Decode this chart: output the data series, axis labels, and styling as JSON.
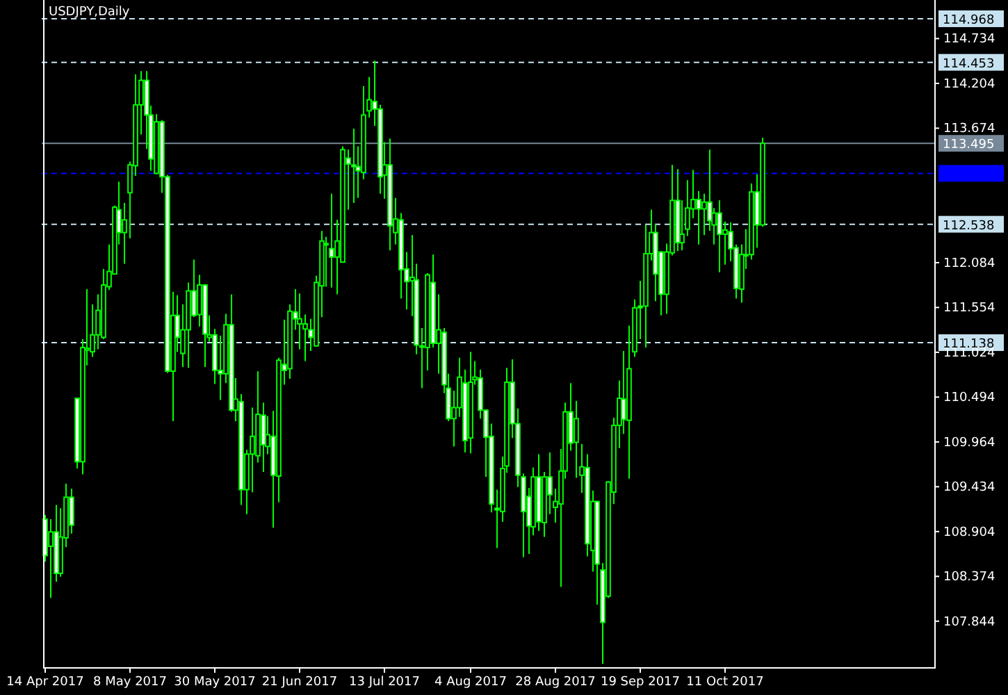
{
  "chart_data": {
    "type": "candlestick",
    "title": "USDJPY,Daily",
    "categories": [
      "14 Apr 2017",
      null,
      null,
      null,
      null,
      null,
      null,
      null,
      null,
      null,
      null,
      null,
      null,
      null,
      null,
      null,
      "8 May 2017",
      null,
      null,
      null,
      null,
      null,
      null,
      null,
      null,
      null,
      null,
      null,
      null,
      null,
      null,
      null,
      "30 May 2017",
      null,
      null,
      null,
      null,
      null,
      null,
      null,
      null,
      null,
      null,
      null,
      null,
      null,
      null,
      null,
      "21 Jun 2017",
      null,
      null,
      null,
      null,
      null,
      null,
      null,
      null,
      null,
      null,
      null,
      null,
      null,
      null,
      null,
      "13 Jul 2017",
      null,
      null,
      null,
      null,
      null,
      null,
      null,
      null,
      null,
      null,
      null,
      null,
      null,
      null,
      null,
      "4 Aug 2017",
      null,
      null,
      null,
      null,
      null,
      null,
      null,
      null,
      null,
      null,
      null,
      null,
      null,
      null,
      null,
      "28 Aug 2017",
      null,
      null,
      null,
      null,
      null,
      null,
      null,
      null,
      null,
      null,
      null,
      null,
      null,
      null,
      null,
      "19 Sep 2017",
      null,
      null,
      null,
      null,
      null,
      null,
      null,
      null,
      null,
      null,
      null,
      null,
      null,
      null,
      null,
      "11 Oct 2017",
      null,
      null,
      null,
      null,
      null,
      null,
      null,
      null,
      null,
      null,
      null,
      null,
      null,
      null,
      null,
      null,
      null,
      null,
      null,
      null,
      null,
      null,
      null,
      null,
      null,
      null,
      null,
      null,
      null,
      null,
      null,
      null,
      null,
      null,
      null,
      null,
      null,
      null,
      null
    ],
    "ohlc": [
      [
        109.05,
        109.1,
        108.55,
        108.62
      ],
      [
        108.73,
        109.05,
        108.12,
        108.9
      ],
      [
        108.9,
        109.22,
        108.31,
        108.41
      ],
      [
        108.41,
        109.18,
        108.37,
        108.84
      ],
      [
        108.83,
        109.47,
        108.72,
        109.31
      ],
      [
        109.31,
        109.41,
        108.88,
        108.98
      ],
      [
        110.48,
        110.48,
        109.65,
        109.73
      ],
      [
        109.73,
        111.18,
        109.58,
        111.08
      ],
      [
        111.05,
        111.77,
        110.87,
        111.07
      ],
      [
        111.03,
        111.59,
        110.97,
        111.23
      ],
      [
        111.23,
        111.71,
        111.06,
        111.52
      ],
      [
        111.2,
        112.01,
        111.18,
        111.82
      ],
      [
        111.8,
        112.3,
        111.76,
        111.98
      ],
      [
        111.95,
        112.76,
        111.95,
        112.74
      ],
      [
        112.71,
        113.04,
        112.3,
        112.44
      ],
      [
        112.44,
        112.79,
        112.07,
        112.59
      ],
      [
        112.91,
        113.28,
        112.37,
        113.24
      ],
      [
        113.23,
        114.31,
        113.11,
        113.95
      ],
      [
        113.95,
        114.35,
        113.6,
        114.24
      ],
      [
        114.24,
        114.35,
        113.43,
        113.83
      ],
      [
        113.83,
        113.94,
        113.17,
        113.31
      ],
      [
        113.14,
        113.84,
        113.13,
        113.75
      ],
      [
        113.75,
        113.77,
        112.91,
        113.1
      ],
      [
        113.1,
        113.12,
        110.78,
        110.8
      ],
      [
        110.8,
        111.74,
        110.21,
        111.46
      ],
      [
        111.46,
        111.7,
        111.03,
        111.2
      ],
      [
        111.01,
        111.59,
        110.85,
        111.29
      ],
      [
        111.29,
        111.85,
        110.84,
        111.75
      ],
      [
        111.75,
        112.12,
        111.44,
        111.46
      ],
      [
        111.47,
        111.94,
        111.33,
        111.82
      ],
      [
        111.82,
        111.83,
        110.85,
        111.24
      ],
      [
        111.2,
        111.46,
        111.15,
        111.23
      ],
      [
        111.23,
        111.3,
        110.65,
        110.81
      ],
      [
        110.81,
        111.22,
        110.46,
        110.77
      ],
      [
        110.77,
        111.48,
        110.66,
        111.35
      ],
      [
        111.35,
        111.71,
        110.32,
        110.34
      ],
      [
        110.34,
        110.72,
        110.21,
        110.47
      ],
      [
        110.44,
        110.53,
        109.22,
        109.4
      ],
      [
        109.4,
        109.87,
        109.11,
        109.82
      ],
      [
        109.82,
        110.37,
        109.37,
        110.03
      ],
      [
        109.8,
        110.8,
        109.72,
        110.29
      ],
      [
        110.28,
        110.43,
        109.61,
        109.93
      ],
      [
        109.91,
        110.27,
        109.82,
        110.05
      ],
      [
        110.03,
        110.33,
        108.95,
        109.57
      ],
      [
        109.56,
        110.96,
        109.25,
        110.93
      ],
      [
        110.88,
        111.41,
        110.64,
        110.81
      ],
      [
        110.83,
        111.59,
        110.71,
        111.51
      ],
      [
        111.5,
        111.77,
        111.29,
        111.42
      ],
      [
        111.36,
        111.72,
        111.06,
        111.42
      ],
      [
        111.3,
        111.47,
        110.92,
        111.36
      ],
      [
        111.29,
        111.42,
        111.04,
        111.2
      ],
      [
        111.1,
        111.93,
        111.09,
        111.85
      ],
      [
        111.81,
        112.46,
        111.44,
        112.34
      ],
      [
        112.31,
        112.39,
        111.8,
        112.3
      ],
      [
        112.25,
        112.9,
        111.79,
        112.15
      ],
      [
        112.15,
        112.59,
        111.71,
        112.34
      ],
      [
        112.09,
        113.46,
        112.09,
        113.42
      ],
      [
        113.32,
        113.42,
        112.71,
        113.25
      ],
      [
        113.24,
        113.67,
        112.79,
        113.22
      ],
      [
        113.22,
        113.46,
        112.85,
        113.17
      ],
      [
        113.15,
        114.17,
        113.07,
        113.83
      ],
      [
        113.88,
        114.28,
        113.8,
        114.01
      ],
      [
        113.99,
        114.47,
        113.7,
        113.9
      ],
      [
        113.9,
        113.95,
        112.9,
        113.1
      ],
      [
        113.12,
        113.51,
        112.84,
        113.24
      ],
      [
        113.24,
        113.55,
        112.23,
        112.52
      ],
      [
        112.44,
        112.85,
        112.3,
        112.6
      ],
      [
        112.59,
        112.67,
        111.66,
        112.0
      ],
      [
        112.01,
        112.21,
        111.53,
        111.86
      ],
      [
        111.87,
        112.41,
        111.45,
        111.91
      ],
      [
        111.88,
        112.07,
        111.0,
        111.11
      ],
      [
        111.1,
        111.31,
        110.6,
        111.09
      ],
      [
        111.08,
        111.96,
        110.81,
        111.94
      ],
      [
        111.85,
        112.18,
        111.08,
        111.13
      ],
      [
        111.13,
        111.71,
        110.77,
        111.29
      ],
      [
        111.26,
        111.31,
        110.54,
        110.64
      ],
      [
        110.6,
        110.77,
        110.21,
        110.24
      ],
      [
        110.24,
        110.57,
        109.91,
        110.37
      ],
      [
        110.37,
        110.96,
        110.26,
        110.73
      ],
      [
        110.66,
        110.82,
        109.84,
        109.98
      ],
      [
        110.01,
        111.03,
        109.83,
        110.67
      ],
      [
        110.7,
        110.92,
        110.64,
        110.73
      ],
      [
        110.72,
        110.82,
        110.24,
        110.34
      ],
      [
        110.34,
        110.34,
        109.55,
        110.02
      ],
      [
        110.03,
        110.18,
        109.13,
        109.23
      ],
      [
        109.18,
        109.4,
        108.71,
        109.16
      ],
      [
        109.14,
        109.79,
        109.02,
        109.65
      ],
      [
        109.68,
        110.84,
        109.6,
        110.67
      ],
      [
        110.67,
        110.94,
        110.01,
        110.18
      ],
      [
        110.18,
        110.36,
        109.43,
        109.57
      ],
      [
        109.55,
        109.59,
        108.6,
        109.14
      ],
      [
        109.32,
        109.42,
        108.64,
        108.97
      ],
      [
        108.96,
        109.66,
        108.86,
        109.55
      ],
      [
        109.55,
        109.82,
        108.91,
        109.02
      ],
      [
        109.01,
        109.61,
        108.84,
        109.55
      ],
      [
        109.55,
        109.84,
        109.11,
        109.34
      ],
      [
        109.19,
        109.41,
        109.01,
        109.26
      ],
      [
        109.23,
        109.88,
        108.25,
        109.62
      ],
      [
        109.62,
        110.43,
        109.53,
        110.32
      ],
      [
        110.32,
        110.66,
        109.86,
        109.95
      ],
      [
        109.96,
        110.45,
        109.54,
        110.24
      ],
      [
        109.57,
        109.94,
        109.36,
        109.67
      ],
      [
        109.66,
        109.82,
        108.61,
        108.76
      ],
      [
        108.68,
        109.39,
        108.43,
        109.26
      ],
      [
        109.26,
        109.26,
        108.04,
        108.52
      ],
      [
        108.45,
        108.53,
        107.34,
        107.83
      ],
      [
        108.14,
        109.5,
        108.12,
        109.49
      ],
      [
        109.37,
        110.25,
        109.23,
        110.16
      ],
      [
        110.16,
        110.69,
        109.89,
        110.48
      ],
      [
        110.47,
        111.04,
        110.06,
        110.23
      ],
      [
        110.22,
        111.34,
        109.53,
        110.83
      ],
      [
        111.03,
        111.65,
        110.97,
        111.55
      ],
      [
        111.57,
        111.87,
        111.18,
        111.55
      ],
      [
        111.57,
        112.53,
        111.08,
        112.19
      ],
      [
        112.19,
        112.71,
        112.11,
        112.44
      ],
      [
        112.44,
        112.54,
        111.63,
        111.95
      ],
      [
        112.21,
        112.22,
        111.46,
        111.71
      ],
      [
        111.71,
        112.31,
        111.48,
        112.21
      ],
      [
        112.2,
        113.24,
        112.17,
        112.82
      ],
      [
        112.82,
        113.19,
        112.22,
        112.32
      ],
      [
        112.32,
        112.82,
        112.23,
        112.42
      ],
      [
        112.48,
        113.06,
        112.4,
        112.73
      ],
      [
        112.72,
        113.18,
        112.61,
        112.83
      ],
      [
        112.83,
        112.93,
        112.3,
        112.72
      ],
      [
        112.72,
        112.9,
        112.41,
        112.8
      ],
      [
        112.8,
        113.42,
        112.46,
        112.58
      ],
      [
        112.53,
        112.73,
        112.3,
        112.67
      ],
      [
        112.67,
        112.82,
        111.97,
        112.42
      ],
      [
        112.42,
        112.57,
        112.06,
        112.47
      ],
      [
        112.45,
        112.56,
        112.1,
        112.25
      ],
      [
        112.26,
        112.3,
        111.66,
        111.78
      ],
      [
        111.77,
        112.3,
        111.61,
        112.18
      ],
      [
        112.18,
        112.48,
        112.01,
        112.17
      ],
      [
        112.18,
        113.02,
        112.12,
        112.92
      ],
      [
        112.92,
        113.13,
        112.26,
        112.53
      ],
      [
        112.53,
        113.56,
        112.51,
        113.495
      ],
      null,
      null,
      null,
      null,
      null,
      null,
      null,
      null,
      null,
      null,
      null,
      null,
      null,
      null,
      null,
      null,
      null,
      null,
      null,
      null,
      null,
      null,
      null,
      null,
      null,
      null,
      null,
      null,
      null,
      null,
      null,
      null
    ],
    "color": "#00ff00",
    "ylim": [
      107.3,
      115.19
    ],
    "yticks": [
      114.734,
      114.204,
      113.674,
      112.084,
      111.554,
      111.024,
      110.494,
      109.964,
      109.434,
      108.904,
      108.374,
      107.844
    ],
    "ref_lines": [
      {
        "axis": "y",
        "value": 114.968,
        "label": "114.968",
        "color": "#c6e2f0",
        "line_style": "dashed"
      },
      {
        "axis": "y",
        "value": 114.453,
        "label": "114.453",
        "color": "#c6e2f0",
        "line_style": "dashed"
      },
      {
        "axis": "y",
        "value": 113.495,
        "label": "113.495",
        "color": "#778899",
        "line_style": "solid"
      },
      {
        "axis": "y",
        "value": 113.14,
        "label": null,
        "color": "#0000ff",
        "line_style": "dashed"
      },
      {
        "axis": "y",
        "value": 112.538,
        "label": "112.538",
        "color": "#c6e2f0",
        "line_style": "dashed"
      },
      {
        "axis": "y",
        "value": 111.138,
        "label": "111.138",
        "color": "#c6e2f0",
        "line_style": "dashed"
      }
    ],
    "grid": false
  }
}
